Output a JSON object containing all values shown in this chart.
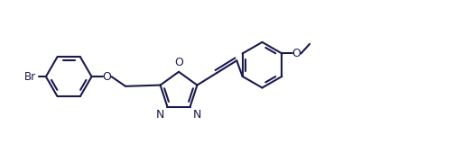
{
  "bg_color": "#ffffff",
  "line_color": "#1a1a4e",
  "line_width": 1.5,
  "figsize": [
    5.13,
    1.8
  ],
  "dpi": 100,
  "label_Br": "Br",
  "label_O1": "O",
  "label_O2": "O",
  "label_N1": "N",
  "label_N2": "N",
  "label_OMe": "O",
  "xlim": [
    0,
    10.5
  ],
  "ylim": [
    0,
    3.5
  ]
}
